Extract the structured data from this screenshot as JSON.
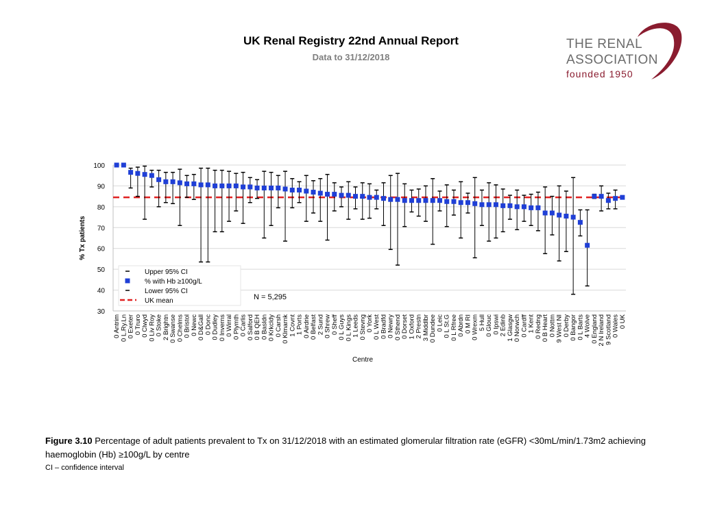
{
  "header": {
    "title": "UK Renal Registry 22nd Annual Report",
    "subtitle": "Data to 31/12/2018"
  },
  "logo": {
    "line1": "THE RENAL",
    "line2": "ASSOCIATION",
    "line3": "founded 1950",
    "accent_color": "#8a1c2f"
  },
  "caption": {
    "label": "Figure 3.10",
    "text": "Percentage of adult patients prevalent to Tx on 31/12/2018 with an estimated glomerular filtration rate (eGFR) <30mL/min/1.73m2 achieving haemoglobin (Hb) ≥100g/L by centre",
    "note": "CI – confidence interval"
  },
  "chart_data": {
    "type": "scatter",
    "xlabel": "Centre",
    "ylabel": "% Tx patients",
    "ylim": [
      30,
      100
    ],
    "yticks": [
      30,
      40,
      50,
      60,
      70,
      80,
      90,
      100
    ],
    "grid": true,
    "uk_mean": 84.5,
    "annotation": "N = 5,295",
    "legend": {
      "position": "bottom-left",
      "entries": [
        "Upper 95% CI",
        "% with Hb ≥100g/L",
        "Lower 95% CI",
        "UK mean"
      ]
    },
    "colors": {
      "point": "#1f3fd6",
      "mean": "#e02020",
      "ci": "#000000",
      "grid": "#d9d9d9"
    },
    "centres": [
      {
        "label": "0 Antrim",
        "value": 100,
        "upper": 100,
        "lower": 100
      },
      {
        "label": "0 L.Ry.Ln",
        "value": 100,
        "upper": 100,
        "lower": 100
      },
      {
        "label": "0 Exeter",
        "value": 96.5,
        "upper": 98.5,
        "lower": 89
      },
      {
        "label": "0 Truro",
        "value": 96,
        "upper": 99,
        "lower": 85
      },
      {
        "label": "0 Clwyd",
        "value": 95.5,
        "upper": 99.5,
        "lower": 74
      },
      {
        "label": "0 Liv Roy",
        "value": 95,
        "upper": 97.5,
        "lower": 89.5
      },
      {
        "label": "0 Stoke",
        "value": 93,
        "upper": 97.5,
        "lower": 80
      },
      {
        "label": "2 Brightn",
        "value": 92,
        "upper": 96.5,
        "lower": 82
      },
      {
        "label": "0 Swanse",
        "value": 92,
        "upper": 96.5,
        "lower": 81.5
      },
      {
        "label": "0 Chelms",
        "value": 91.5,
        "upper": 98,
        "lower": 71
      },
      {
        "label": "0 Bristol",
        "value": 91,
        "upper": 95,
        "lower": 84.5
      },
      {
        "label": "0 Newc",
        "value": 91,
        "upper": 95.5,
        "lower": 83.5
      },
      {
        "label": "0 D&Gall",
        "value": 90.5,
        "upper": 98.5,
        "lower": 53.5
      },
      {
        "label": "0 Donc",
        "value": 90.5,
        "upper": 98.5,
        "lower": 53.5
      },
      {
        "label": "0 Dudley",
        "value": 90,
        "upper": 97.5,
        "lower": 68
      },
      {
        "label": "0 Inverns",
        "value": 90,
        "upper": 97.5,
        "lower": 68
      },
      {
        "label": "0 Wirral",
        "value": 90,
        "upper": 97,
        "lower": 73
      },
      {
        "label": "0 Plymth",
        "value": 90,
        "upper": 96,
        "lower": 78
      },
      {
        "label": "0 Carlis",
        "value": 89.5,
        "upper": 96.5,
        "lower": 72
      },
      {
        "label": "0 Salford",
        "value": 89.5,
        "upper": 94,
        "lower": 82
      },
      {
        "label": "0 B QEH",
        "value": 89,
        "upper": 93,
        "lower": 84
      },
      {
        "label": "0 Basldn",
        "value": 89,
        "upper": 97,
        "lower": 65
      },
      {
        "label": "0 Krkcldy",
        "value": 89,
        "upper": 96.5,
        "lower": 71
      },
      {
        "label": "0 Carsh",
        "value": 89,
        "upper": 95,
        "lower": 79.5
      },
      {
        "label": "0 Klmarnk",
        "value": 88.5,
        "upper": 97,
        "lower": 63.5
      },
      {
        "label": "1 Covnt",
        "value": 88,
        "upper": 93.5,
        "lower": 79.5
      },
      {
        "label": "1 Ports",
        "value": 88,
        "upper": 92,
        "lower": 82
      },
      {
        "label": "0 Airdrie",
        "value": 87.5,
        "upper": 95,
        "lower": 73
      },
      {
        "label": "0 Belfast",
        "value": 87,
        "upper": 92.5,
        "lower": 77
      },
      {
        "label": "2 Sund",
        "value": 86.5,
        "upper": 93.5,
        "lower": 73
      },
      {
        "label": "0 Shrew",
        "value": 86,
        "upper": 95.5,
        "lower": 64
      },
      {
        "label": "0 Sheff",
        "value": 86,
        "upper": 91.5,
        "lower": 78
      },
      {
        "label": "0 L Guys",
        "value": 85.5,
        "upper": 89.5,
        "lower": 80
      },
      {
        "label": "0 L Kings",
        "value": 85.5,
        "upper": 92,
        "lower": 74
      },
      {
        "label": "1 Leeds",
        "value": 85,
        "upper": 89.5,
        "lower": 79
      },
      {
        "label": "0 Stevng",
        "value": 85,
        "upper": 91.5,
        "lower": 74
      },
      {
        "label": "0 York",
        "value": 84.5,
        "upper": 91,
        "lower": 74.5
      },
      {
        "label": "0 L West",
        "value": 84.5,
        "upper": 88,
        "lower": 79
      },
      {
        "label": "0 Bradfd",
        "value": 84,
        "upper": 91.5,
        "lower": 71
      },
      {
        "label": "0 Newry",
        "value": 83.5,
        "upper": 95,
        "lower": 59.5
      },
      {
        "label": "0 Sthend",
        "value": 83.5,
        "upper": 96,
        "lower": 52
      },
      {
        "label": "0 Dorset",
        "value": 83,
        "upper": 91,
        "lower": 70.5
      },
      {
        "label": "1 Oxford",
        "value": 83,
        "upper": 88,
        "lower": 77.5
      },
      {
        "label": "2 Prestn",
        "value": 83,
        "upper": 88.5,
        "lower": 75.5
      },
      {
        "label": "3 Middlbr",
        "value": 83,
        "upper": 90,
        "lower": 73
      },
      {
        "label": "0 Dundee",
        "value": 83,
        "upper": 93.5,
        "lower": 62
      },
      {
        "label": "0 Leic",
        "value": 83,
        "upper": 87.5,
        "lower": 78
      },
      {
        "label": "0 L St.G",
        "value": 82.5,
        "upper": 90.5,
        "lower": 70.5
      },
      {
        "label": "0 L Rfree",
        "value": 82.5,
        "upper": 88,
        "lower": 76
      },
      {
        "label": "0 Abrdn",
        "value": 82,
        "upper": 92,
        "lower": 65
      },
      {
        "label": "0 M RI",
        "value": 82,
        "upper": 86.5,
        "lower": 77
      },
      {
        "label": "0 Wrexm",
        "value": 81.5,
        "upper": 94,
        "lower": 55.5
      },
      {
        "label": "5 Hull",
        "value": 81,
        "upper": 88,
        "lower": 71
      },
      {
        "label": "0 Glouc",
        "value": 81,
        "upper": 91.5,
        "lower": 63.5
      },
      {
        "label": "0 Ipswi",
        "value": 81,
        "upper": 90.5,
        "lower": 65
      },
      {
        "label": "2 Edinb",
        "value": 80.5,
        "upper": 88.5,
        "lower": 68
      },
      {
        "label": "1 Glasgw",
        "value": 80.5,
        "upper": 85.5,
        "lower": 74
      },
      {
        "label": "0 Norwch",
        "value": 80,
        "upper": 88,
        "lower": 69
      },
      {
        "label": "0 Cardff",
        "value": 80,
        "upper": 85.5,
        "lower": 73
      },
      {
        "label": "1 Kent",
        "value": 79.5,
        "upper": 86,
        "lower": 71
      },
      {
        "label": "0 Redng",
        "value": 79.5,
        "upper": 87,
        "lower": 68.5
      },
      {
        "label": "0 B Heart",
        "value": 77,
        "upper": 89.5,
        "lower": 57.5
      },
      {
        "label": "0 Nottm",
        "value": 77,
        "upper": 85,
        "lower": 66.5
      },
      {
        "label": "9 West NI",
        "value": 76,
        "upper": 90,
        "lower": 54
      },
      {
        "label": "0 Derby",
        "value": 75.5,
        "upper": 87.5,
        "lower": 58.5
      },
      {
        "label": "0 Bangor",
        "value": 75,
        "upper": 94,
        "lower": 38
      },
      {
        "label": "0 L Barts",
        "value": 72.5,
        "upper": 78.5,
        "lower": 66
      },
      {
        "label": "4 Wolve",
        "value": 61.5,
        "upper": 78.5,
        "lower": 42
      },
      {
        "label": "0 England",
        "value": 85,
        "upper": 86,
        "lower": 84
      },
      {
        "label": "2 N Ireland",
        "value": 85,
        "upper": 90,
        "lower": 78
      },
      {
        "label": "9 Scotland",
        "value": 83,
        "upper": 86.5,
        "lower": 79
      },
      {
        "label": "0 Wales",
        "value": 84,
        "upper": 88,
        "lower": 79
      },
      {
        "label": "0 UK",
        "value": 84.5,
        "upper": 85,
        "lower": 84
      }
    ]
  }
}
